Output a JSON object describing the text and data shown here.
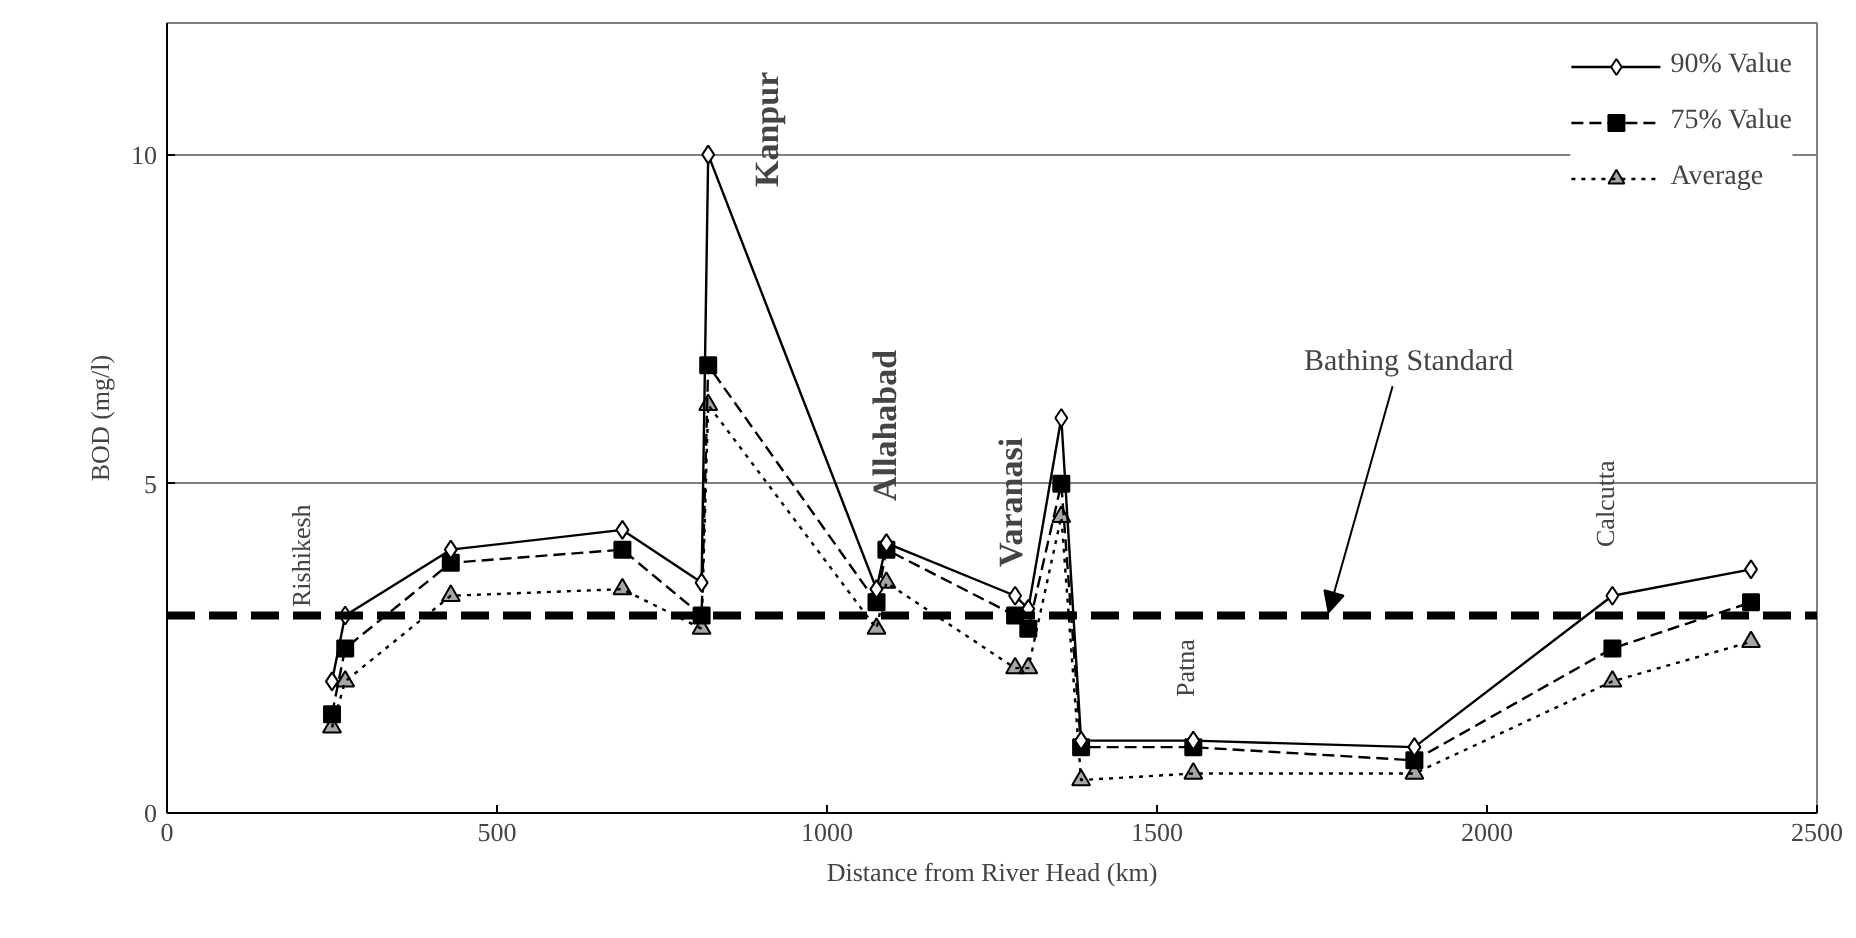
{
  "chart_data": {
    "type": "line",
    "xlabel": "Distance from River Head (km)",
    "ylabel": "BOD (mg/l)",
    "x": [
      250,
      270,
      430,
      690,
      810,
      820,
      1075,
      1090,
      1285,
      1305,
      1355,
      1385,
      1555,
      1890,
      2190,
      2400
    ],
    "series": [
      {
        "name": "90% Value",
        "color": "#000000",
        "marker": "diamond",
        "line_style": "solid",
        "values": [
          2.0,
          3.0,
          4.0,
          4.3,
          3.5,
          10.0,
          3.4,
          4.1,
          3.3,
          3.1,
          6.0,
          1.1,
          1.1,
          1.0,
          3.3,
          3.7
        ]
      },
      {
        "name": "75% Value",
        "color": "#000000",
        "marker": "square",
        "line_style": "dashed",
        "values": [
          1.5,
          2.5,
          3.8,
          4.0,
          3.0,
          6.8,
          3.2,
          4.0,
          3.0,
          2.8,
          5.0,
          1.0,
          1.0,
          0.8,
          2.5,
          3.2
        ]
      },
      {
        "name": "Average",
        "color": "#000000",
        "marker": "triangle",
        "line_style": "dotted",
        "values": [
          1.3,
          2.0,
          3.3,
          3.4,
          2.8,
          6.2,
          2.8,
          3.5,
          2.2,
          2.2,
          4.5,
          0.5,
          0.6,
          0.6,
          2.0,
          2.6
        ]
      }
    ],
    "xlim": [
      0,
      2500
    ],
    "xticks": [
      0,
      500,
      1000,
      1500,
      2000,
      2500
    ],
    "ylim": [
      0,
      12
    ],
    "yticks": [
      0,
      5,
      10
    ],
    "grid": "y",
    "legend": "top right",
    "ref_lines": [
      {
        "axis": "y",
        "value": 3,
        "color": "#000000",
        "line_style": "dashed"
      }
    ],
    "annotations": [
      "Rishikesh",
      "Kanpur",
      "Allahabad",
      "Varanasi",
      "Patna",
      "Calcutta",
      {
        "text": "Bathing Standard",
        "x": 1760,
        "y": 3.05
      }
    ]
  }
}
